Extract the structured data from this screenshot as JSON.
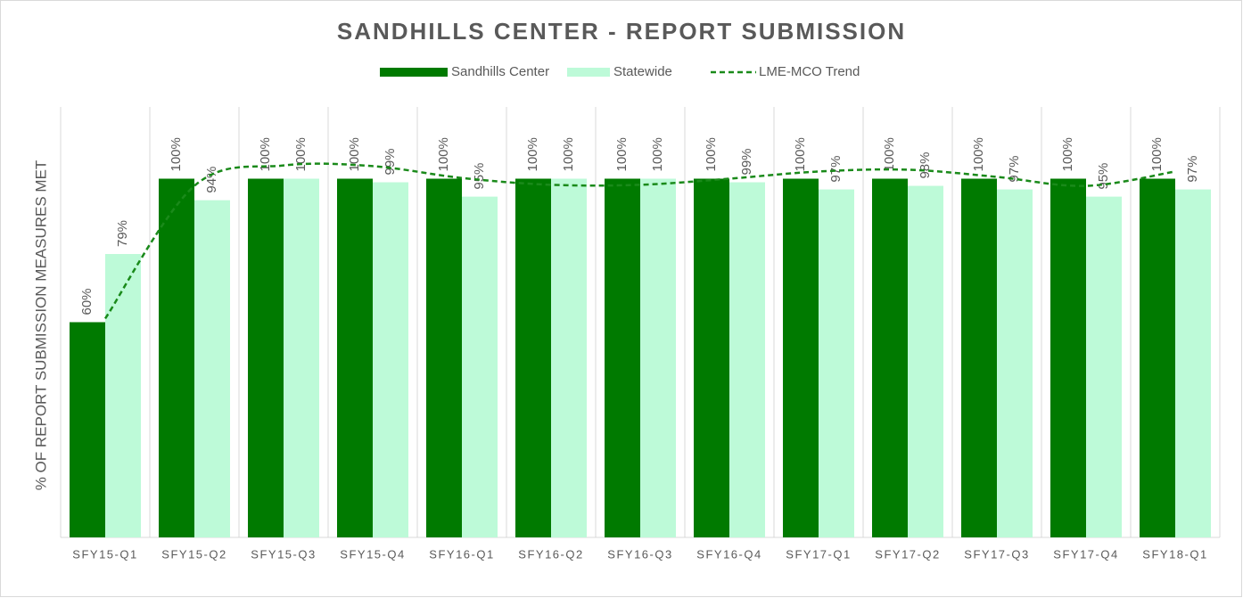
{
  "chart_data": {
    "type": "bar",
    "title": "SANDHILLS CENTER - REPORT SUBMISSION",
    "y_label": "% OF REPORT SUBMISSION MEASURES MET",
    "categories": [
      "SFY15-Q1",
      "SFY15-Q2",
      "SFY15-Q3",
      "SFY15-Q4",
      "SFY16-Q1",
      "SFY16-Q2",
      "SFY16-Q3",
      "SFY16-Q4",
      "SFY17-Q1",
      "SFY17-Q2",
      "SFY17-Q3",
      "SFY17-Q4",
      "SFY18-Q1"
    ],
    "series": [
      {
        "name": "Sandhills Center",
        "color": "#007a00",
        "type": "bar",
        "values": [
          60,
          100,
          100,
          100,
          100,
          100,
          100,
          100,
          100,
          100,
          100,
          100,
          100
        ],
        "value_labels": [
          "60%",
          "100%",
          "100%",
          "100%",
          "100%",
          "100%",
          "100%",
          "100%",
          "100%",
          "100%",
          "100%",
          "100%",
          "100%"
        ]
      },
      {
        "name": "Statewide",
        "color": "#bdfad8",
        "type": "bar",
        "values": [
          79,
          94,
          100,
          99,
          95,
          100,
          100,
          99,
          97,
          98,
          97,
          95,
          97
        ],
        "value_labels": [
          "79%",
          "94%",
          "100%",
          "99%",
          "95%",
          "100%",
          "100%",
          "99%",
          "97%",
          "98%",
          "97%",
          "95%",
          "97%"
        ]
      },
      {
        "name": "LME-MCO Trend",
        "color": "#1a8a1a",
        "type": "line",
        "dashed": true,
        "values": [
          61,
          98,
          103.7,
          103.5,
          100.2,
          98.3,
          98.3,
          100,
          102,
          102.5,
          100.5,
          98,
          102
        ]
      }
    ],
    "ylim": [
      0,
      120
    ],
    "legend": "top",
    "grid": "vertical"
  }
}
